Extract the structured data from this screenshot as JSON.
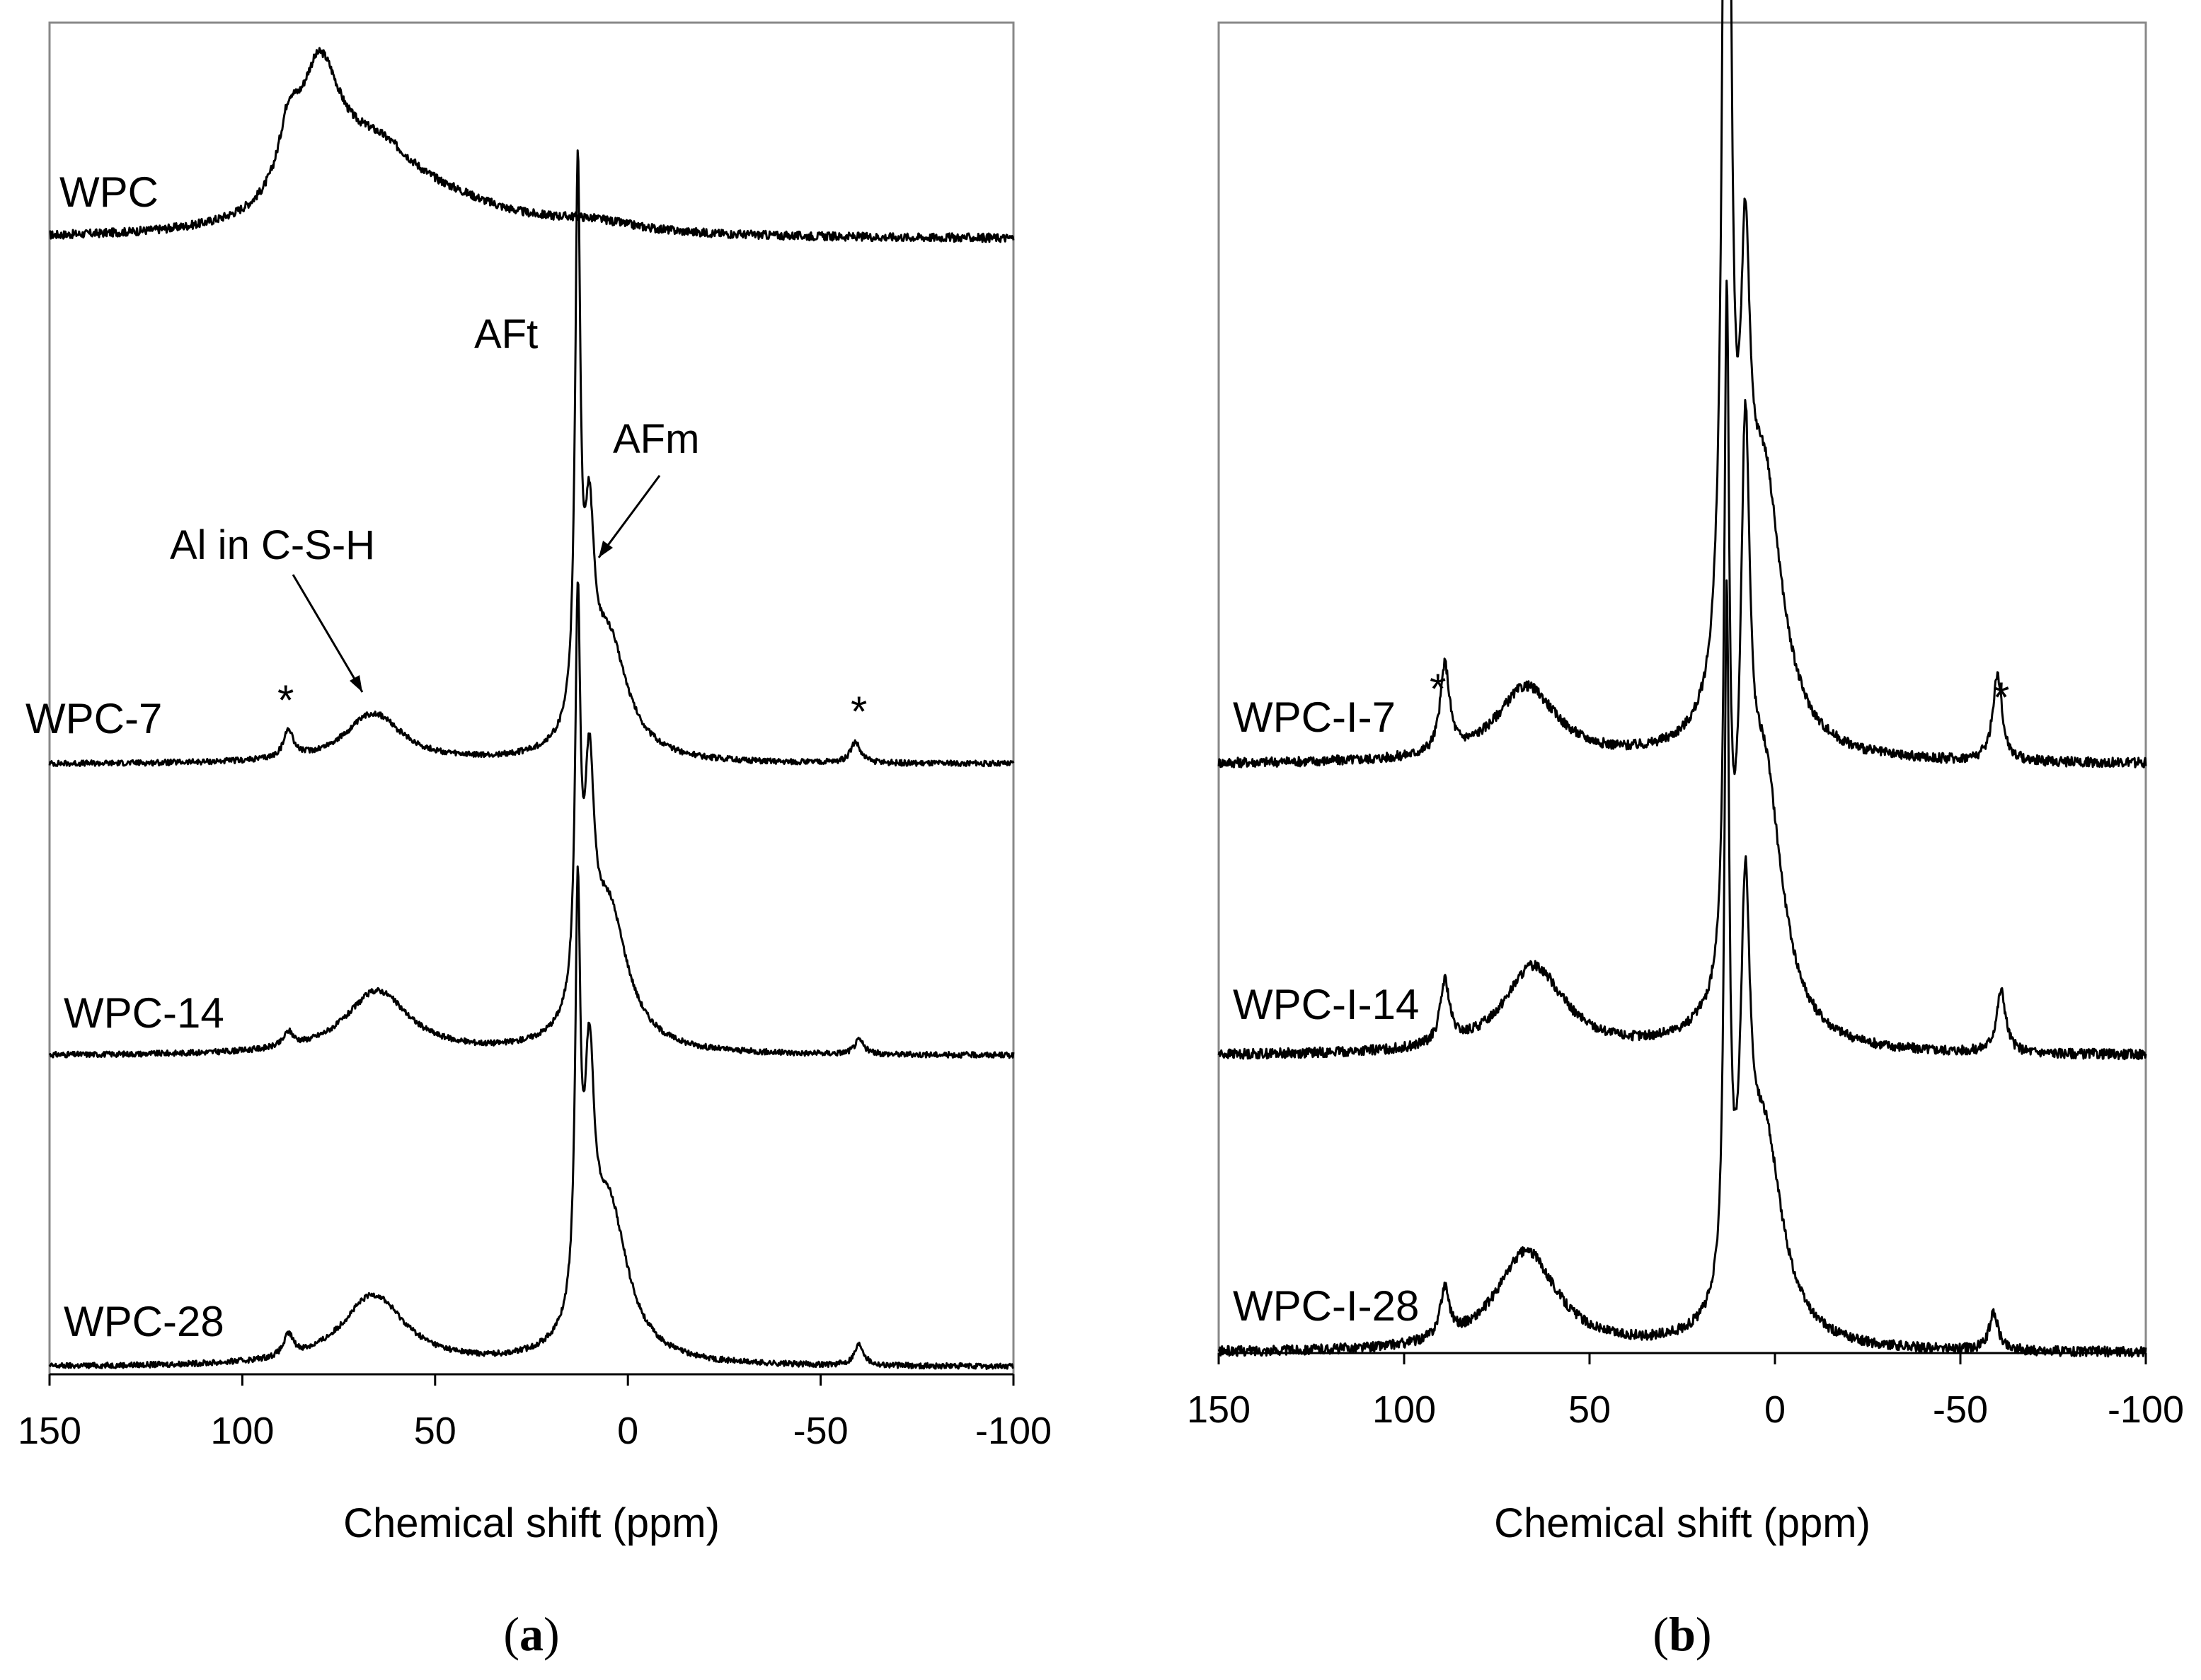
{
  "chart_data": [
    {
      "type": "line",
      "panel": "a",
      "caption": "(a)",
      "caption_letter": "a",
      "xlabel": "Chemical shift (ppm)",
      "xlim": [
        150,
        -100
      ],
      "xticks": [
        "150",
        "100",
        "50",
        "0",
        "-50",
        "-100"
      ],
      "yticks_visible": false,
      "series": [
        {
          "name": "WPC",
          "peaks": [
            {
              "ppm": 80,
              "height": 0.2,
              "width": 7
            },
            {
              "ppm": 88,
              "height": 0.08,
              "width": 3
            },
            {
              "ppm": 65,
              "height": 0.1,
              "width": 14
            },
            {
              "ppm": 45,
              "height": 0.03,
              "width": 20
            },
            {
              "ppm": 10,
              "height": 0.015,
              "width": 15
            }
          ],
          "noise": 0.006
        },
        {
          "name": "WPC-7",
          "peaks": [
            {
              "ppm": 13,
              "height": 0.76,
              "width": 0.8
            },
            {
              "ppm": 10,
              "height": 0.25,
              "width": 1.5
            },
            {
              "ppm": 5,
              "height": 0.17,
              "width": 6
            },
            {
              "ppm": 66,
              "height": 0.07,
              "width": 9
            },
            {
              "ppm": 88,
              "height": 0.04,
              "width": 1.5
            },
            {
              "ppm": -59,
              "height": 0.03,
              "width": 1.5
            }
          ],
          "noise": 0.004
        },
        {
          "name": "WPC-14",
          "peaks": [
            {
              "ppm": 13,
              "height": 0.54,
              "width": 0.8
            },
            {
              "ppm": 10,
              "height": 0.3,
              "width": 1.5
            },
            {
              "ppm": 5,
              "height": 0.2,
              "width": 6
            },
            {
              "ppm": 65,
              "height": 0.09,
              "width": 10
            },
            {
              "ppm": 88,
              "height": 0.02,
              "width": 1.5
            },
            {
              "ppm": -60,
              "height": 0.02,
              "width": 1.5
            }
          ],
          "noise": 0.004
        },
        {
          "name": "WPC-28",
          "peaks": [
            {
              "ppm": 13,
              "height": 0.56,
              "width": 0.8
            },
            {
              "ppm": 10,
              "height": 0.32,
              "width": 1.5
            },
            {
              "ppm": 5,
              "height": 0.22,
              "width": 6
            },
            {
              "ppm": 66,
              "height": 0.1,
              "width": 10
            },
            {
              "ppm": 88,
              "height": 0.03,
              "width": 1.5
            },
            {
              "ppm": -60,
              "height": 0.03,
              "width": 1.5
            }
          ],
          "noise": 0.004
        }
      ],
      "annotations": [
        {
          "text": "AFt",
          "ppm": 13,
          "kind": "label"
        },
        {
          "text": "AFm",
          "ppm": 10,
          "kind": "arrow"
        },
        {
          "text": "Al in C-S-H",
          "ppm": 66,
          "kind": "arrow"
        },
        {
          "text": "*",
          "ppm": 88,
          "kind": "spinning-sideband"
        },
        {
          "text": "*",
          "ppm": -59,
          "kind": "spinning-sideband"
        }
      ]
    },
    {
      "type": "line",
      "panel": "b",
      "caption": "(b)",
      "caption_letter": "b",
      "xlabel": "Chemical shift (ppm)",
      "xlim": [
        150,
        -100
      ],
      "xticks": [
        "150",
        "100",
        "50",
        "0",
        "-50",
        "-100"
      ],
      "yticks_visible": false,
      "series": [
        {
          "name": "WPC-I-7",
          "peaks": [
            {
              "ppm": 13,
              "height": 1.0,
              "width": 0.8
            },
            {
              "ppm": 13,
              "height": 0.35,
              "width": 1.5
            },
            {
              "ppm": 8,
              "height": 0.27,
              "width": 1.5
            },
            {
              "ppm": 3,
              "height": 0.22,
              "width": 6
            },
            {
              "ppm": 67,
              "height": 0.06,
              "width": 10
            },
            {
              "ppm": 89,
              "height": 0.07,
              "width": 1.5
            },
            {
              "ppm": -60,
              "height": 0.07,
              "width": 1.5
            }
          ],
          "noise": 0.004
        },
        {
          "name": "WPC-I-14",
          "peaks": [
            {
              "ppm": 13,
              "height": 0.53,
              "width": 0.8
            },
            {
              "ppm": 8,
              "height": 0.38,
              "width": 1.5
            },
            {
              "ppm": 3,
              "height": 0.22,
              "width": 6
            },
            {
              "ppm": 65,
              "height": 0.07,
              "width": 10
            },
            {
              "ppm": 89,
              "height": 0.05,
              "width": 1.5
            },
            {
              "ppm": -61,
              "height": 0.05,
              "width": 1.5
            }
          ],
          "noise": 0.004
        },
        {
          "name": "WPC-I-28",
          "peaks": [
            {
              "ppm": 13,
              "height": 0.55,
              "width": 0.8
            },
            {
              "ppm": 8,
              "height": 0.28,
              "width": 1.5
            },
            {
              "ppm": 3,
              "height": 0.17,
              "width": 6
            },
            {
              "ppm": 67,
              "height": 0.08,
              "width": 10
            },
            {
              "ppm": 89,
              "height": 0.04,
              "width": 1.5
            },
            {
              "ppm": -59,
              "height": 0.03,
              "width": 1.5
            }
          ],
          "noise": 0.004
        }
      ],
      "annotations": [
        {
          "text": "*",
          "ppm": 89,
          "kind": "spinning-sideband"
        },
        {
          "text": "*",
          "ppm": -60,
          "kind": "spinning-sideband"
        }
      ]
    }
  ]
}
